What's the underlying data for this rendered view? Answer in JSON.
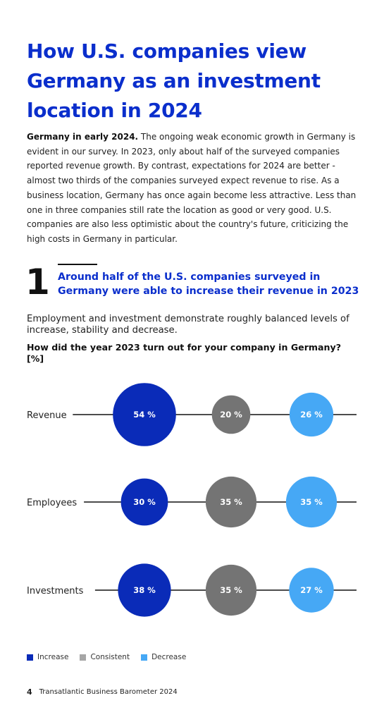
{
  "title": "How U.S. companies view Germany as an investment location in 2024",
  "intro": {
    "lead": "Germany in early 2024.",
    "body": " The ongoing weak economic growth in Germany is evident in our survey. In 2023, only about half of the surveyed companies reported revenue growth. By contrast, expectations for 2024 are better - almost two thirds of the companies surveyed expect revenue to rise. As a business location, Germany has once again become less attractive. Less than one in three companies still rate the location as good or very good. U.S. companies are also less optimistic about the country's future, criticizing the high costs in Germany in particular."
  },
  "section": {
    "number": "1",
    "heading": "Around half of the U.S. companies surveyed in Germany were able to increase their revenue in 2023"
  },
  "subtitle": "Employment and investment demonstrate roughly balanced levels of increase, stability and decrease.",
  "question": "How did the year 2023 turn out for your company in Germany? [%]",
  "colors": {
    "increase": "#0a2bb8",
    "consistent": "#747474",
    "decrease": "#46a8f5",
    "title": "#0a2ecc"
  },
  "chart_data": {
    "type": "bubble",
    "unit": "%",
    "categories": [
      "Revenue",
      "Employees",
      "Investments"
    ],
    "series": [
      {
        "name": "Increase",
        "values": [
          54,
          30,
          38
        ]
      },
      {
        "name": "Consistent",
        "values": [
          20,
          35,
          35
        ]
      },
      {
        "name": "Decrease",
        "values": [
          26,
          35,
          27
        ]
      }
    ],
    "legend_position": "bottom-left"
  },
  "legend": [
    "Increase",
    "Consistent",
    "Decrease"
  ],
  "footer": {
    "page": "4",
    "publication": "Transatlantic Business Barometer 2024"
  }
}
